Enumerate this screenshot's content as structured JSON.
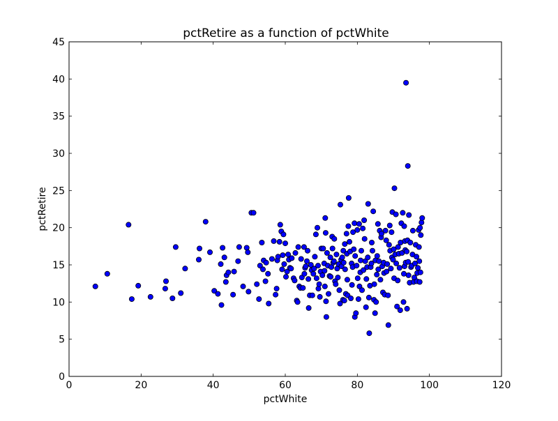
{
  "chart_data": {
    "type": "scatter",
    "title": "pctRetire as a function of pctWhite",
    "xlabel": "pctWhite",
    "ylabel": "pctRetire",
    "xlim": [
      0,
      120
    ],
    "ylim": [
      0,
      45
    ],
    "xticks": [
      0,
      20,
      40,
      60,
      80,
      100,
      120
    ],
    "yticks": [
      0,
      5,
      10,
      15,
      20,
      25,
      30,
      35,
      40,
      45
    ],
    "grid": false,
    "legend": "none",
    "marker_color": "#0000ff",
    "marker_edge": "#000000",
    "points": [
      [
        7.3,
        12.1
      ],
      [
        10.6,
        13.8
      ],
      [
        16.5,
        20.4
      ],
      [
        17.4,
        10.4
      ],
      [
        19.2,
        12.2
      ],
      [
        22.6,
        10.7
      ],
      [
        26.7,
        11.8
      ],
      [
        26.9,
        12.8
      ],
      [
        28.7,
        10.5
      ],
      [
        29.6,
        17.4
      ],
      [
        31.0,
        11.2
      ],
      [
        32.2,
        14.5
      ],
      [
        36.0,
        15.7
      ],
      [
        36.2,
        17.2
      ],
      [
        37.9,
        20.8
      ],
      [
        39.1,
        16.7
      ],
      [
        40.3,
        11.5
      ],
      [
        41.3,
        11.1
      ],
      [
        42.1,
        15.1
      ],
      [
        42.3,
        9.6
      ],
      [
        42.6,
        17.3
      ],
      [
        43.1,
        16.0
      ],
      [
        43.5,
        12.7
      ],
      [
        43.7,
        13.6
      ],
      [
        44.2,
        14.0
      ],
      [
        45.5,
        11.0
      ],
      [
        45.8,
        14.1
      ],
      [
        46.9,
        15.5
      ],
      [
        47.2,
        17.4
      ],
      [
        48.3,
        12.1
      ],
      [
        49.3,
        17.3
      ],
      [
        49.6,
        16.7
      ],
      [
        49.8,
        11.4
      ],
      [
        50.6,
        22.0
      ],
      [
        51.2,
        22.0
      ],
      [
        52.1,
        12.4
      ],
      [
        52.7,
        10.4
      ],
      [
        53.0,
        14.9
      ],
      [
        53.5,
        18.0
      ],
      [
        53.8,
        14.4
      ],
      [
        54.0,
        15.6
      ],
      [
        54.5,
        12.8
      ],
      [
        54.7,
        15.3
      ],
      [
        55.2,
        13.8
      ],
      [
        55.4,
        9.8
      ],
      [
        56.3,
        15.8
      ],
      [
        56.8,
        18.2
      ],
      [
        57.3,
        11.0
      ],
      [
        57.6,
        11.8
      ],
      [
        57.8,
        15.6
      ],
      [
        58.0,
        16.1
      ],
      [
        58.4,
        18.1
      ],
      [
        58.6,
        20.4
      ],
      [
        58.9,
        19.5
      ],
      [
        59.1,
        14.4
      ],
      [
        59.3,
        16.3
      ],
      [
        59.5,
        19.1
      ],
      [
        59.7,
        15.1
      ],
      [
        60.0,
        17.9
      ],
      [
        60.2,
        13.4
      ],
      [
        60.5,
        14.1
      ],
      [
        60.8,
        16.4
      ],
      [
        61.0,
        15.7
      ],
      [
        61.3,
        14.6
      ],
      [
        61.6,
        14.5
      ],
      [
        61.8,
        15.9
      ],
      [
        62.3,
        13.2
      ],
      [
        62.6,
        12.9
      ],
      [
        62.8,
        16.6
      ],
      [
        63.2,
        10.2
      ],
      [
        63.4,
        10.0
      ],
      [
        63.6,
        17.4
      ],
      [
        63.9,
        12.1
      ],
      [
        64.2,
        11.9
      ],
      [
        64.4,
        15.8
      ],
      [
        64.6,
        13.3
      ],
      [
        64.9,
        11.9
      ],
      [
        65.2,
        17.4
      ],
      [
        65.3,
        13.8
      ],
      [
        65.5,
        14.6
      ],
      [
        65.7,
        14.8
      ],
      [
        66.0,
        15.5
      ],
      [
        66.2,
        16.9
      ],
      [
        66.4,
        13.1
      ],
      [
        66.5,
        9.2
      ],
      [
        66.8,
        10.9
      ],
      [
        67.1,
        15.0
      ],
      [
        67.3,
        14.3
      ],
      [
        67.5,
        10.9
      ],
      [
        67.8,
        13.8
      ],
      [
        68.0,
        14.5
      ],
      [
        68.2,
        16.1
      ],
      [
        68.5,
        19.1
      ],
      [
        68.7,
        13.2
      ],
      [
        68.9,
        20.0
      ],
      [
        69.1,
        14.9
      ],
      [
        69.2,
        11.8
      ],
      [
        69.4,
        12.4
      ],
      [
        69.6,
        10.7
      ],
      [
        69.8,
        14.1
      ],
      [
        70.0,
        17.2
      ],
      [
        70.3,
        13.6
      ],
      [
        70.5,
        17.2
      ],
      [
        70.8,
        15.2
      ],
      [
        70.9,
        14.2
      ],
      [
        71.0,
        12.1
      ],
      [
        71.1,
        21.3
      ],
      [
        71.2,
        19.3
      ],
      [
        71.3,
        10.1
      ],
      [
        71.4,
        8.0
      ],
      [
        71.6,
        16.6
      ],
      [
        71.8,
        14.9
      ],
      [
        72.0,
        11.1
      ],
      [
        72.3,
        13.5
      ],
      [
        72.5,
        16.0
      ],
      [
        72.6,
        13.4
      ],
      [
        72.8,
        14.7
      ],
      [
        73.0,
        18.8
      ],
      [
        73.1,
        17.2
      ],
      [
        73.3,
        15.3
      ],
      [
        73.5,
        15.5
      ],
      [
        73.6,
        18.5
      ],
      [
        73.8,
        12.8
      ],
      [
        74.0,
        12.4
      ],
      [
        74.2,
        16.4
      ],
      [
        74.4,
        14.5
      ],
      [
        74.6,
        13.3
      ],
      [
        74.8,
        15.1
      ],
      [
        75.0,
        11.6
      ],
      [
        75.2,
        9.8
      ],
      [
        75.3,
        23.1
      ],
      [
        75.5,
        15.7
      ],
      [
        75.6,
        14.8
      ],
      [
        75.8,
        16.0
      ],
      [
        76.0,
        10.3
      ],
      [
        76.1,
        16.9
      ],
      [
        76.2,
        15.3
      ],
      [
        76.4,
        10.2
      ],
      [
        76.5,
        17.8
      ],
      [
        76.6,
        14.4
      ],
      [
        76.8,
        11.1
      ],
      [
        77.0,
        19.2
      ],
      [
        77.1,
        16.5
      ],
      [
        77.2,
        13.0
      ],
      [
        77.3,
        10.9
      ],
      [
        77.5,
        20.2
      ],
      [
        77.6,
        24.0
      ],
      [
        77.8,
        18.1
      ],
      [
        78.0,
        16.8
      ],
      [
        78.2,
        10.5
      ],
      [
        78.4,
        15.2
      ],
      [
        78.5,
        12.3
      ],
      [
        78.7,
        14.7
      ],
      [
        78.8,
        19.4
      ],
      [
        79.0,
        17.1
      ],
      [
        79.2,
        20.6
      ],
      [
        79.3,
        8.0
      ],
      [
        79.4,
        16.2
      ],
      [
        79.6,
        8.5
      ],
      [
        79.8,
        14.9
      ],
      [
        80.0,
        19.7
      ],
      [
        80.1,
        13.2
      ],
      [
        80.3,
        10.4
      ],
      [
        80.5,
        20.5
      ],
      [
        80.6,
        12.1
      ],
      [
        80.8,
        14.0
      ],
      [
        80.9,
        15.6
      ],
      [
        81.1,
        16.9
      ],
      [
        81.3,
        11.6
      ],
      [
        81.5,
        19.9
      ],
      [
        81.7,
        14.3
      ],
      [
        81.9,
        21.0
      ],
      [
        82.0,
        18.5
      ],
      [
        82.2,
        15.5
      ],
      [
        82.4,
        9.3
      ],
      [
        82.5,
        13.1
      ],
      [
        82.7,
        14.7
      ],
      [
        82.9,
        16.0
      ],
      [
        83.0,
        23.2
      ],
      [
        83.2,
        10.6
      ],
      [
        83.3,
        5.8
      ],
      [
        83.5,
        12.2
      ],
      [
        83.7,
        14.7
      ],
      [
        83.9,
        15.2
      ],
      [
        84.0,
        18.0
      ],
      [
        84.2,
        16.9
      ],
      [
        84.4,
        22.2
      ],
      [
        84.6,
        10.3
      ],
      [
        84.7,
        12.4
      ],
      [
        84.9,
        8.5
      ],
      [
        85.0,
        15.6
      ],
      [
        85.2,
        10.0
      ],
      [
        85.4,
        13.7
      ],
      [
        85.5,
        16.2
      ],
      [
        85.7,
        20.5
      ],
      [
        85.8,
        14.4
      ],
      [
        86.0,
        15.5
      ],
      [
        86.2,
        19.6
      ],
      [
        86.4,
        13.0
      ],
      [
        86.6,
        18.7
      ],
      [
        86.7,
        19.2
      ],
      [
        86.9,
        14.8
      ],
      [
        87.1,
        11.3
      ],
      [
        87.3,
        15.3
      ],
      [
        87.4,
        13.9
      ],
      [
        87.6,
        11.0
      ],
      [
        87.8,
        19.6
      ],
      [
        88.0,
        18.3
      ],
      [
        88.1,
        14.1
      ],
      [
        88.3,
        15.1
      ],
      [
        88.5,
        10.9
      ],
      [
        88.6,
        6.9
      ],
      [
        88.8,
        17.7
      ],
      [
        89.0,
        20.3
      ],
      [
        89.1,
        16.9
      ],
      [
        89.3,
        14.5
      ],
      [
        89.5,
        19.4
      ],
      [
        89.6,
        16.0
      ],
      [
        89.7,
        22.1
      ],
      [
        89.9,
        15.7
      ],
      [
        90.1,
        17.1
      ],
      [
        90.2,
        13.2
      ],
      [
        90.3,
        25.3
      ],
      [
        90.5,
        16.4
      ],
      [
        90.7,
        21.8
      ],
      [
        90.8,
        15.2
      ],
      [
        91.0,
        9.4
      ],
      [
        91.2,
        12.9
      ],
      [
        91.3,
        17.4
      ],
      [
        91.5,
        16.5
      ],
      [
        91.7,
        14.6
      ],
      [
        91.9,
        8.9
      ],
      [
        92.0,
        18.0
      ],
      [
        92.2,
        20.6
      ],
      [
        92.4,
        16.6
      ],
      [
        92.6,
        22.0
      ],
      [
        92.8,
        10.0
      ],
      [
        92.9,
        13.8
      ],
      [
        93.0,
        20.2
      ],
      [
        93.1,
        14.8
      ],
      [
        93.2,
        18.2
      ],
      [
        93.3,
        17.0
      ],
      [
        93.4,
        15.3
      ],
      [
        93.5,
        39.5
      ],
      [
        93.7,
        16.8
      ],
      [
        93.8,
        9.1
      ],
      [
        93.9,
        18.3
      ],
      [
        94.0,
        28.3
      ],
      [
        94.1,
        15.4
      ],
      [
        94.2,
        13.6
      ],
      [
        94.3,
        21.7
      ],
      [
        94.5,
        12.6
      ],
      [
        94.7,
        18.0
      ],
      [
        94.9,
        14.7
      ],
      [
        95.1,
        14.9
      ],
      [
        95.3,
        16.4
      ],
      [
        95.4,
        19.6
      ],
      [
        95.6,
        12.7
      ],
      [
        95.8,
        13.3
      ],
      [
        96.0,
        15.2
      ],
      [
        96.2,
        17.7
      ],
      [
        96.4,
        16.1
      ],
      [
        96.5,
        12.8
      ],
      [
        96.6,
        13.9
      ],
      [
        96.8,
        14.6
      ],
      [
        97.0,
        19.7
      ],
      [
        97.1,
        17.4
      ],
      [
        97.2,
        15.5
      ],
      [
        97.3,
        12.7
      ],
      [
        97.4,
        20.0
      ],
      [
        97.5,
        14.0
      ],
      [
        97.6,
        19.0
      ],
      [
        97.8,
        20.7
      ],
      [
        98.0,
        21.3
      ]
    ]
  }
}
